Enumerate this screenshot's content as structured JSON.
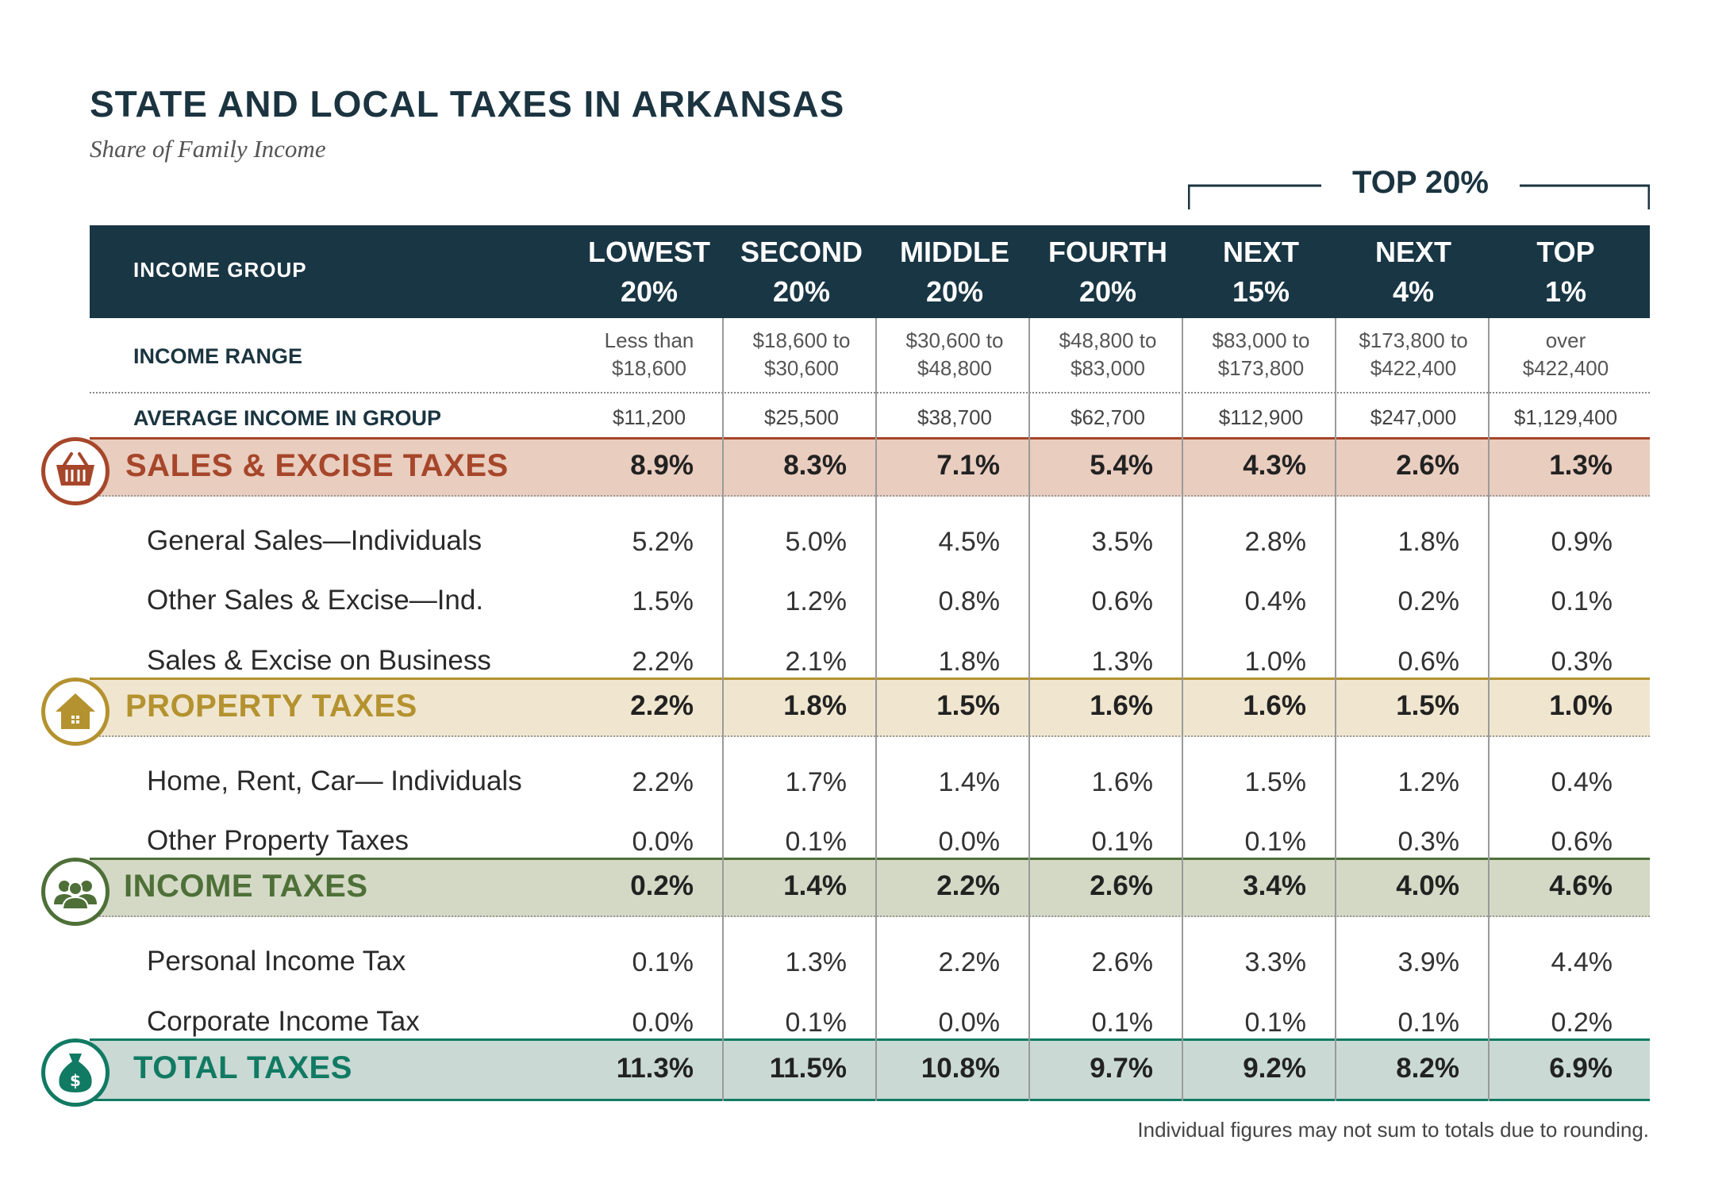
{
  "title": "STATE AND LOCAL TAXES IN ARKANSAS",
  "subtitle": "Share of Family Income",
  "top_group_label": "TOP 20%",
  "header": {
    "row_label": "INCOME  GROUP",
    "columns": [
      {
        "line1": "LOWEST",
        "line2": "20%"
      },
      {
        "line1": "SECOND",
        "line2": "20%"
      },
      {
        "line1": "MIDDLE",
        "line2": "20%"
      },
      {
        "line1": "FOURTH",
        "line2": "20%"
      },
      {
        "line1": "NEXT",
        "line2": "15%"
      },
      {
        "line1": "NEXT",
        "line2": "4%"
      },
      {
        "line1": "TOP",
        "line2": "1%"
      }
    ]
  },
  "income_range": {
    "label": "INCOME RANGE",
    "values": [
      {
        "line1": "Less than",
        "line2": "$18,600"
      },
      {
        "line1": "$18,600 to",
        "line2": "$30,600"
      },
      {
        "line1": "$30,600 to",
        "line2": "$48,800"
      },
      {
        "line1": "$48,800 to",
        "line2": "$83,000"
      },
      {
        "line1": "$83,000 to",
        "line2": "$173,800"
      },
      {
        "line1": "$173,800 to",
        "line2": "$422,400"
      },
      {
        "line1": "over",
        "line2": "$422,400"
      }
    ]
  },
  "average_income": {
    "label": "AVERAGE INCOME IN GROUP",
    "values": [
      "$11,200",
      "$25,500",
      "$38,700",
      "$62,700",
      "$112,900",
      "$247,000",
      "$1,129,400"
    ]
  },
  "colors": {
    "header": "#193644",
    "sales": "#a6462a",
    "sales_band": "#e9cdbf",
    "property": "#b4922f",
    "property_band": "#f0e6cf",
    "income": "#4e7038",
    "income_band": "#d4d9c6",
    "total": "#117a63",
    "total_band": "#cad9d4"
  },
  "chart_data": {
    "type": "table",
    "title": "STATE AND LOCAL TAXES IN ARKANSAS",
    "subtitle": "Share of Family Income",
    "columns": [
      "LOWEST 20%",
      "SECOND 20%",
      "MIDDLE 20%",
      "FOURTH 20%",
      "NEXT 15%",
      "NEXT 4%",
      "TOP 1%"
    ],
    "categories": [
      {
        "name": "SALES & EXCISE TAXES",
        "icon": "shopping-basket-icon",
        "total": [
          "8.9%",
          "8.3%",
          "7.1%",
          "5.4%",
          "4.3%",
          "2.6%",
          "1.3%"
        ],
        "rows": [
          {
            "name": "General Sales—Individuals",
            "values": [
              "5.2%",
              "5.0%",
              "4.5%",
              "3.5%",
              "2.8%",
              "1.8%",
              "0.9%"
            ]
          },
          {
            "name": "Other Sales & Excise—Ind.",
            "values": [
              "1.5%",
              "1.2%",
              "0.8%",
              "0.6%",
              "0.4%",
              "0.2%",
              "0.1%"
            ]
          },
          {
            "name": "Sales & Excise on Business",
            "values": [
              "2.2%",
              "2.1%",
              "1.8%",
              "1.3%",
              "1.0%",
              "0.6%",
              "0.3%"
            ]
          }
        ]
      },
      {
        "name": "PROPERTY TAXES",
        "icon": "house-icon",
        "total": [
          "2.2%",
          "1.8%",
          "1.5%",
          "1.6%",
          "1.6%",
          "1.5%",
          "1.0%"
        ],
        "rows": [
          {
            "name": "Home, Rent, Car— Individuals",
            "values": [
              "2.2%",
              "1.7%",
              "1.4%",
              "1.6%",
              "1.5%",
              "1.2%",
              "0.4%"
            ]
          },
          {
            "name": "Other Property Taxes",
            "values": [
              "0.0%",
              "0.1%",
              "0.0%",
              "0.1%",
              "0.1%",
              "0.3%",
              "0.6%"
            ]
          }
        ]
      },
      {
        "name": "INCOME TAXES",
        "icon": "people-group-icon",
        "total": [
          "0.2%",
          "1.4%",
          "2.2%",
          "2.6%",
          "3.4%",
          "4.0%",
          "4.6%"
        ],
        "rows": [
          {
            "name": "Personal Income Tax",
            "values": [
              "0.1%",
              "1.3%",
              "2.2%",
              "2.6%",
              "3.3%",
              "3.9%",
              "4.4%"
            ]
          },
          {
            "name": "Corporate Income Tax",
            "values": [
              "0.0%",
              "0.1%",
              "0.0%",
              "0.1%",
              "0.1%",
              "0.1%",
              "0.2%"
            ]
          }
        ]
      }
    ],
    "total": {
      "name": "TOTAL TAXES",
      "icon": "money-bag-icon",
      "values": [
        "11.3%",
        "11.5%",
        "10.8%",
        "9.7%",
        "9.2%",
        "8.2%",
        "6.9%"
      ]
    }
  },
  "footnote": "Individual figures may not sum to totals due to rounding."
}
